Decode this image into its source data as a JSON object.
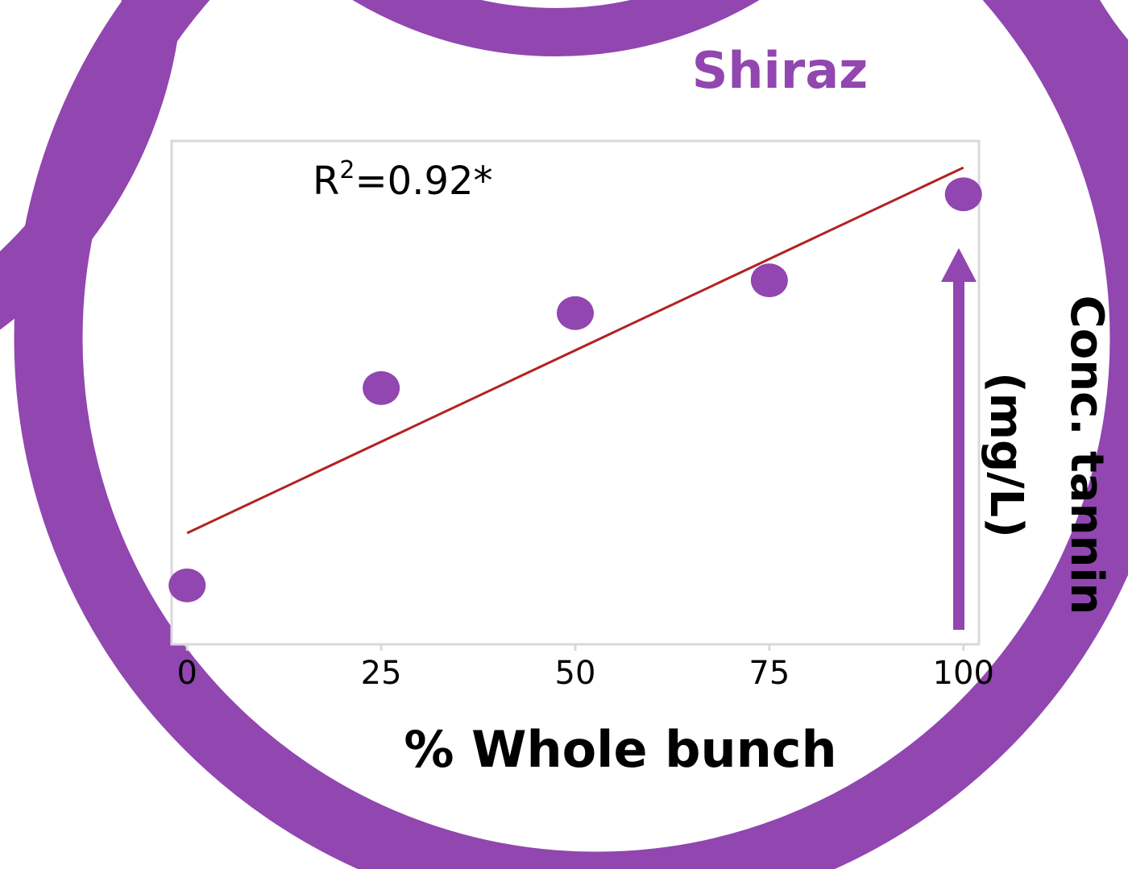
{
  "chart_data": {
    "type": "scatter",
    "title": "Shiraz",
    "x": [
      0,
      25,
      50,
      75,
      100
    ],
    "values": [
      11.7,
      50.9,
      65.8,
      72.3,
      89.4
    ],
    "color": "#9146b0",
    "trendline": {
      "y_start": 22.1,
      "y_end": 94.7,
      "color": "#b22222"
    },
    "annotation": {
      "base": "R",
      "sup": "2",
      "rest": "=0.92*"
    },
    "xlabel": "% Whole bunch",
    "ylabel": [
      "Conc. tannin",
      "(mg/L)"
    ],
    "xlim": [
      -2,
      102
    ],
    "xticks": [
      0,
      25,
      50,
      75,
      100
    ],
    "ylim": [
      0,
      100
    ]
  }
}
